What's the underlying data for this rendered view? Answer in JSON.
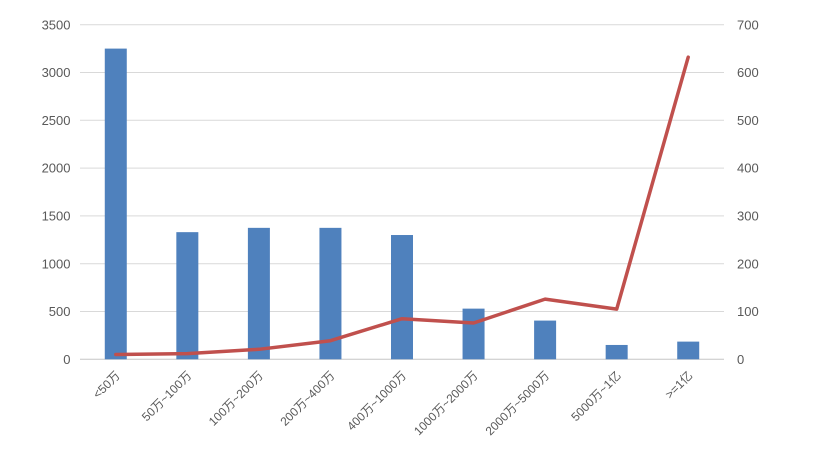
{
  "chart_data": {
    "type": "combo",
    "title": "",
    "legend_position": "none",
    "grid": true,
    "categories": [
      "<50万",
      "50万~100万",
      "100万~200万",
      "200万~400万",
      "400万~1000万",
      "1000万~2000万",
      "2000万~5000万",
      "5000万~1亿",
      ">=1亿"
    ],
    "series": [
      {
        "name": "bar-series",
        "type": "bar",
        "axis": "left",
        "color": "#4F81BD",
        "values": [
          3250,
          1330,
          1375,
          1375,
          1300,
          530,
          405,
          150,
          185
        ]
      },
      {
        "name": "line-series",
        "type": "line",
        "axis": "right",
        "color": "#C0504D",
        "values": [
          10,
          12,
          21,
          39,
          85,
          76,
          126,
          105,
          632
        ]
      }
    ],
    "left_axis": {
      "min": 0,
      "max": 3500,
      "step": 500,
      "tick_labels": [
        "0",
        "500",
        "1000",
        "1500",
        "2000",
        "2500",
        "3000",
        "3500"
      ]
    },
    "right_axis": {
      "min": 0,
      "max": 700,
      "step": 100,
      "tick_labels": [
        "0",
        "100",
        "200",
        "300",
        "400",
        "500",
        "600",
        "700"
      ]
    },
    "styles": {
      "background": "#FFFFFF",
      "gridline_color": "#D9D9D9",
      "axisline_color": "#C6C6C6",
      "tick_text_color": "#595959"
    }
  }
}
